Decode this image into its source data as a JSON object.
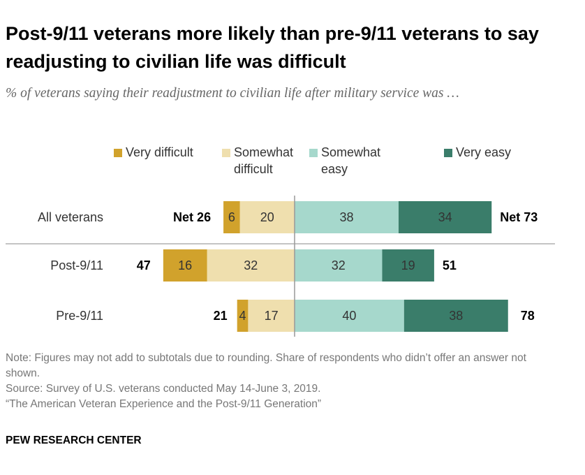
{
  "chart_data": {
    "type": "bar",
    "diverging": true,
    "title": "Post-9/11 veterans more likely than pre-9/11 veterans to say readjusting to civilian life was difficult",
    "subtitle": "% of veterans saying their readjustment to civilian life after military service was …",
    "categories": [
      "All veterans",
      "Post-9/11",
      "Pre-9/11"
    ],
    "series": [
      {
        "name": "Very difficult",
        "color": "#d1a22c",
        "values": [
          6,
          16,
          4
        ]
      },
      {
        "name": "Somewhat difficult",
        "color": "#efdfae",
        "values": [
          20,
          32,
          17
        ]
      },
      {
        "name": "Somewhat easy",
        "color": "#a6d8cc",
        "values": [
          38,
          32,
          40
        ]
      },
      {
        "name": "Very easy",
        "color": "#3a7d6a",
        "values": [
          34,
          19,
          38
        ]
      }
    ],
    "net_difficult": {
      "values": [
        26,
        47,
        21
      ],
      "value_labels": [
        "Net 26",
        "47",
        "21"
      ]
    },
    "net_easy": {
      "values": [
        73,
        51,
        78
      ],
      "value_labels": [
        "Net 73",
        "51",
        "78"
      ]
    },
    "notes": [
      "Note: Figures may not add to subtotals due to rounding. Share of respondents who didn’t offer an answer not shown.",
      "Source: Survey of U.S. veterans conducted May 14-June 3, 2019.",
      "“The American Veteran Experience and the Post-9/11 Generation”"
    ],
    "footer": "PEW RESEARCH CENTER"
  }
}
